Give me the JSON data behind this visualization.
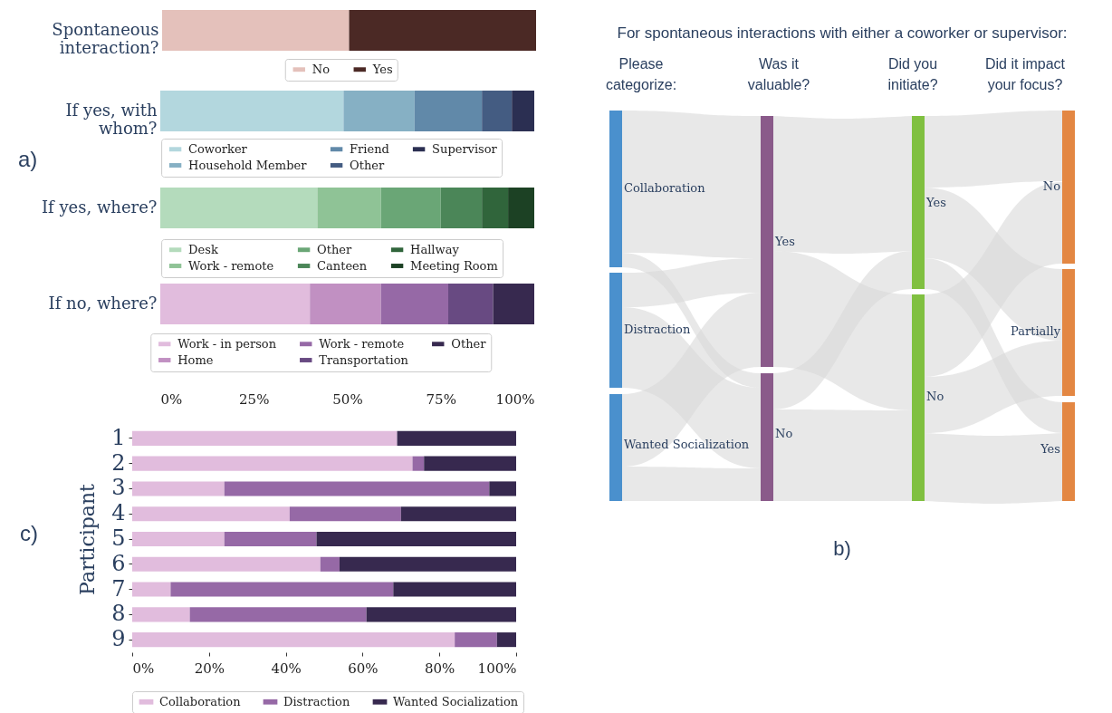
{
  "chart_data": [
    {
      "type": "bar",
      "orientation": "horizontal",
      "stacked": true,
      "categories": [
        "Spontaneous interaction?"
      ],
      "series": [
        {
          "name": "No",
          "color": "#e4c1bb",
          "values": [
            50
          ]
        },
        {
          "name": "Yes",
          "color": "#4b2925",
          "values": [
            50
          ]
        }
      ],
      "xlim": [
        0,
        100
      ],
      "legend": "bottom",
      "tick_labels": "y"
    },
    {
      "type": "bar",
      "orientation": "horizontal",
      "stacked": true,
      "categories": [
        "If yes, with whom?"
      ],
      "series": [
        {
          "name": "Coworker",
          "color": "#b3d7de",
          "values": [
            49
          ]
        },
        {
          "name": "Household Member",
          "color": "#86b0c4",
          "values": [
            19
          ]
        },
        {
          "name": "Friend",
          "color": "#6189a9",
          "values": [
            18
          ]
        },
        {
          "name": "Other",
          "color": "#445c82",
          "values": [
            8
          ]
        },
        {
          "name": "Supervisor",
          "color": "#2b2f52",
          "values": [
            6
          ]
        }
      ],
      "xlim": [
        0,
        100
      ],
      "legend": "bottom",
      "tick_labels": "y",
      "annotations": [
        "a)"
      ]
    },
    {
      "type": "bar",
      "orientation": "horizontal",
      "stacked": true,
      "categories": [
        "If yes, where?"
      ],
      "series": [
        {
          "name": "Desk",
          "color": "#b4dbbc",
          "values": [
            42
          ]
        },
        {
          "name": "Work - remote",
          "color": "#8fc396",
          "values": [
            17
          ]
        },
        {
          "name": "Other",
          "color": "#6aa676",
          "values": [
            16
          ]
        },
        {
          "name": "Canteen",
          "color": "#4b8658",
          "values": [
            11
          ]
        },
        {
          "name": "Hallway",
          "color": "#30653b",
          "values": [
            7
          ]
        },
        {
          "name": "Meeting Room",
          "color": "#1c4124",
          "values": [
            7
          ]
        }
      ],
      "xlim": [
        0,
        100
      ],
      "legend": "bottom",
      "tick_labels": "y"
    },
    {
      "type": "bar",
      "orientation": "horizontal",
      "stacked": true,
      "categories": [
        "If no, where?"
      ],
      "series": [
        {
          "name": "Work - in person",
          "color": "#e1bcdd",
          "values": [
            40
          ]
        },
        {
          "name": "Home",
          "color": "#c190c2",
          "values": [
            19
          ]
        },
        {
          "name": "Work - remote",
          "color": "#9669a6",
          "values": [
            18
          ]
        },
        {
          "name": "Transportation",
          "color": "#684a82",
          "values": [
            12
          ]
        },
        {
          "name": "Other",
          "color": "#37294f",
          "values": [
            11
          ]
        }
      ],
      "xlim": [
        0,
        100
      ],
      "xticks": [
        {
          "value": 0,
          "label": "0%"
        },
        {
          "value": 25,
          "label": "25%"
        },
        {
          "value": 50,
          "label": "50%"
        },
        {
          "value": 75,
          "label": "75%"
        },
        {
          "value": 100,
          "label": "100%"
        }
      ],
      "legend": "bottom"
    },
    {
      "type": "other",
      "title": "For spontaneous interactions with either a coworker or supervisor:",
      "annotations": [
        "Please categorize:",
        "Was it valuable?",
        "Did you initiate?",
        "Did it impact your focus?",
        "Collaboration",
        "Distraction",
        "Wanted Socialization",
        "Yes",
        "No",
        "Yes",
        "No",
        "No",
        "Partially",
        "Yes",
        "b)"
      ]
    },
    {
      "type": "bar",
      "orientation": "horizontal",
      "stacked": true,
      "categories": [
        "1",
        "2",
        "3",
        "4",
        "5",
        "6",
        "7",
        "8",
        "9"
      ],
      "series": [
        {
          "name": "Collaboration",
          "color": "#e1bcdd",
          "values": [
            69,
            73,
            24,
            41,
            24,
            49,
            10,
            15,
            84
          ]
        },
        {
          "name": "Distraction",
          "color": "#9669a6",
          "values": [
            0,
            3,
            69,
            29,
            24,
            5,
            58,
            46,
            11
          ]
        },
        {
          "name": "Wanted Socialization",
          "color": "#37294f",
          "values": [
            31,
            24,
            7,
            30,
            52,
            46,
            32,
            39,
            5
          ]
        }
      ],
      "xlim": [
        0,
        100
      ],
      "xticks": [
        {
          "value": 0,
          "label": "0%"
        },
        {
          "value": 20,
          "label": "20%"
        },
        {
          "value": 40,
          "label": "40%"
        },
        {
          "value": 60,
          "label": "60%"
        },
        {
          "value": 80,
          "label": "80%"
        },
        {
          "value": 100,
          "label": "100%"
        }
      ],
      "ylabel": "Participant",
      "legend": "bottom",
      "annotations": [
        "c)"
      ]
    }
  ]
}
